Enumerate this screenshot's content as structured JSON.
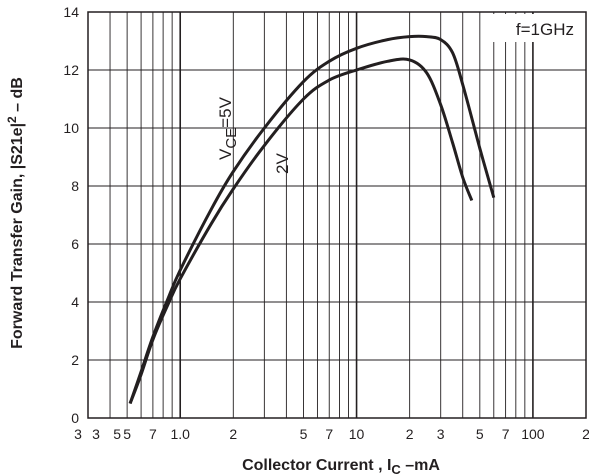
{
  "chart_data": {
    "type": "line",
    "title": "",
    "xlabel": "Collector Current , I",
    "xlabel_sub": "C",
    "xlabel_suffix": " –mA",
    "ylabel": "Forward Transfer Gain,  |S21e|",
    "ylabel_sup": "2",
    "ylabel_suffix": " – dB",
    "x_scale": "log",
    "xlim": [
      0.3,
      200
    ],
    "ylim": [
      0,
      14
    ],
    "grid": true,
    "x_ticks": [
      {
        "value": 0.3,
        "label": "3"
      },
      {
        "value": 0.5,
        "label": "5"
      },
      {
        "value": 0.7,
        "label": "7"
      },
      {
        "value": 1,
        "label": "1.0"
      },
      {
        "value": 2,
        "label": "2"
      },
      {
        "value": 5,
        "label": "5"
      },
      {
        "value": 7,
        "label": "7"
      },
      {
        "value": 10,
        "label": "10"
      },
      {
        "value": 20,
        "label": "2"
      },
      {
        "value": 30,
        "label": "3"
      },
      {
        "value": 50,
        "label": "5"
      },
      {
        "value": 70,
        "label": "7"
      },
      {
        "value": 100,
        "label": "100"
      },
      {
        "value": 200,
        "label": "2"
      }
    ],
    "x_extra_labels": [
      {
        "value": 0.3,
        "label": "3"
      },
      {
        "value": 0.5,
        "label": "5"
      }
    ],
    "x_gridlines": [
      0.4,
      0.5,
      0.6,
      0.7,
      0.8,
      0.9,
      1,
      2,
      3,
      4,
      5,
      6,
      7,
      8,
      9,
      10,
      20,
      30,
      40,
      50,
      60,
      70,
      80,
      90,
      100
    ],
    "x_major_gridlines": [
      1,
      10,
      100
    ],
    "y_ticks": [
      0,
      2,
      4,
      6,
      8,
      10,
      12,
      14
    ],
    "annotations": {
      "frequency": "f=1GHz",
      "vce_prefix": "V",
      "vce_sub": "CE",
      "vce_suffix": "=5V",
      "v2": "2V"
    },
    "series": [
      {
        "name": "VCE=5V",
        "x": [
          0.52,
          0.6,
          0.7,
          0.85,
          1.0,
          1.5,
          2.0,
          3.0,
          5.0,
          7.0,
          10,
          15,
          20,
          25,
          30,
          35,
          40,
          50,
          60
        ],
        "y": [
          0.5,
          1.6,
          2.8,
          4.1,
          5.1,
          7.2,
          8.5,
          10.0,
          11.6,
          12.3,
          12.75,
          13.05,
          13.15,
          13.15,
          13.05,
          12.6,
          11.5,
          9.3,
          7.6
        ]
      },
      {
        "name": "2V",
        "x": [
          0.52,
          0.6,
          0.7,
          0.85,
          1.0,
          1.5,
          2.0,
          3.0,
          5.0,
          7.0,
          10,
          15,
          20,
          25,
          30,
          35,
          40,
          45
        ],
        "y": [
          0.5,
          1.5,
          2.7,
          3.9,
          4.8,
          6.7,
          7.9,
          9.4,
          11.0,
          11.65,
          12.0,
          12.3,
          12.35,
          11.9,
          10.8,
          9.5,
          8.3,
          7.5
        ]
      }
    ]
  },
  "colors": {
    "ink": "#231f20",
    "grid": "#231f20",
    "background": "#ffffff"
  }
}
